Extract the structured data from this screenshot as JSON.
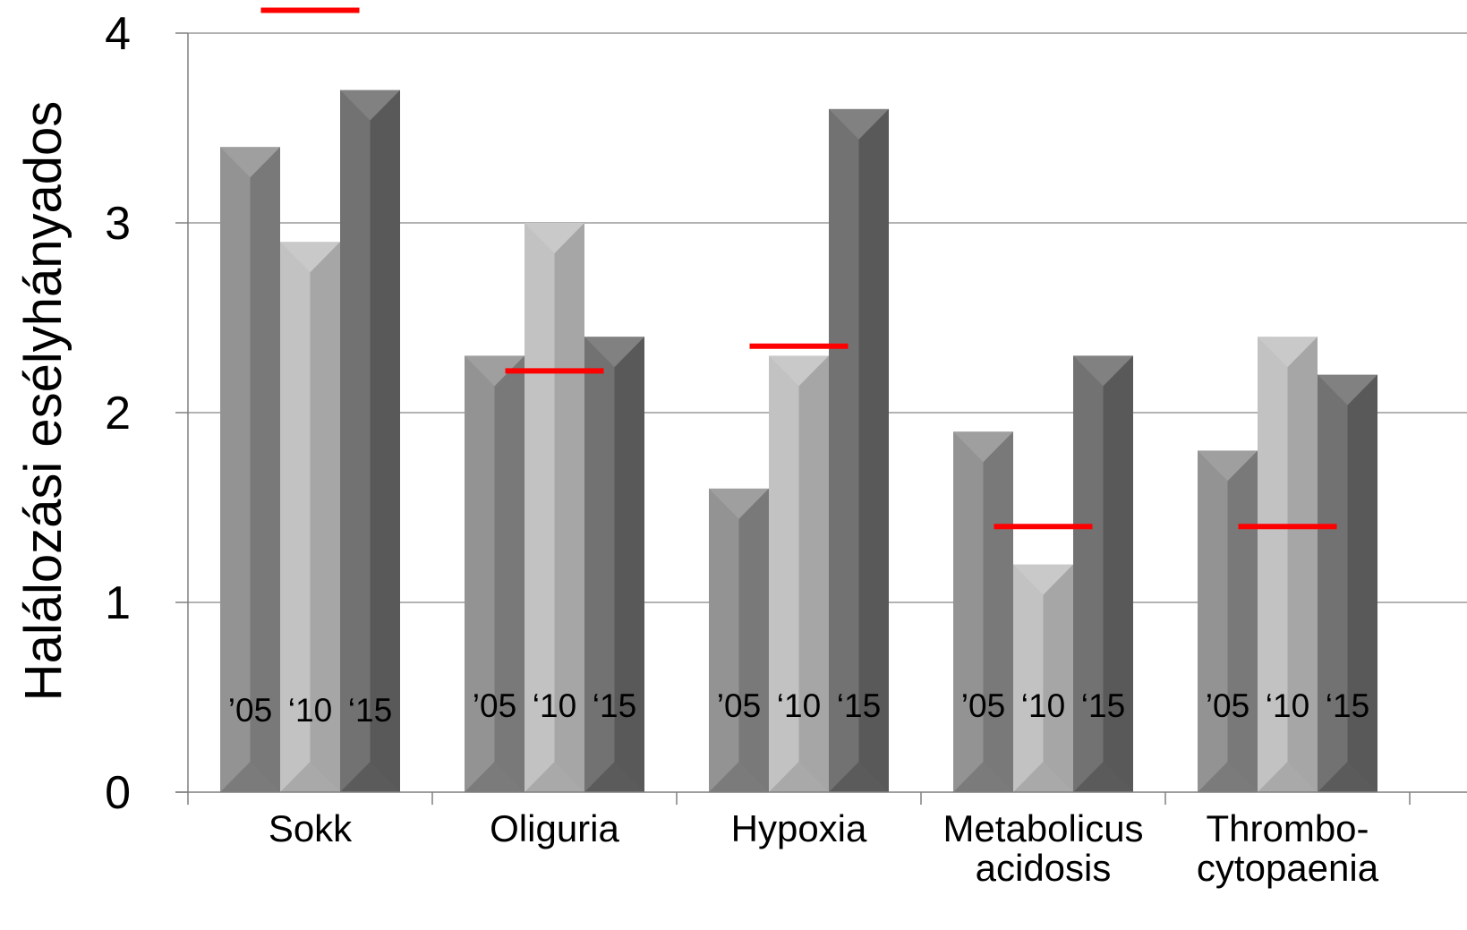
{
  "chart_data": {
    "type": "bar",
    "ylabel": "Halálozási esélyhányados",
    "ylim": [
      0,
      4
    ],
    "yticks": [
      "0",
      "1",
      "2",
      "3",
      "4"
    ],
    "grid": true,
    "categories": [
      {
        "lines": [
          "Sokk"
        ]
      },
      {
        "lines": [
          "Oliguria"
        ]
      },
      {
        "lines": [
          "Hypoxia"
        ]
      },
      {
        "lines": [
          "Metabolicus",
          "acidosis"
        ]
      },
      {
        "lines": [
          "Thrombo-",
          "cytopaenia"
        ]
      }
    ],
    "series": [
      {
        "label": "’05",
        "values": [
          3.4,
          2.3,
          1.6,
          1.9,
          1.8
        ]
      },
      {
        "label": "‘10",
        "values": [
          2.9,
          3.0,
          2.3,
          1.2,
          2.4
        ]
      },
      {
        "label": "‘15",
        "values": [
          3.7,
          2.4,
          3.6,
          2.3,
          2.2
        ]
      }
    ],
    "reference_markers": [
      4.12,
      2.22,
      2.35,
      1.4,
      1.4
    ],
    "colors": {
      "series": [
        "#8a8a8a",
        "#bdbdbd",
        "#666666"
      ],
      "reference": "#ff0000",
      "grid": "#9a9a9a",
      "axis": "#7f7f7f",
      "text": "#000000"
    }
  }
}
